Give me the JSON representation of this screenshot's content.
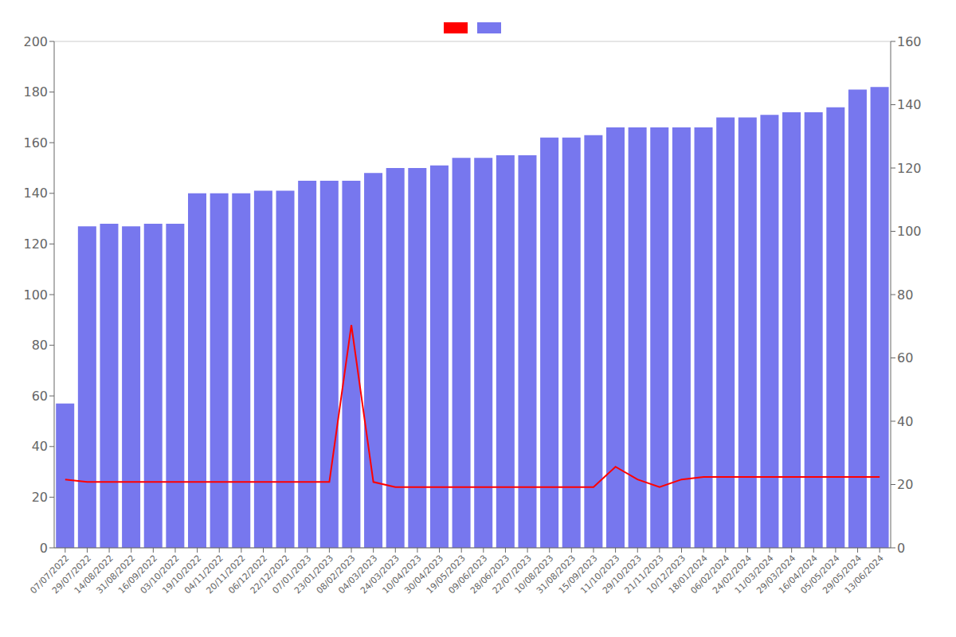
{
  "chart_data": {
    "type": "bar",
    "categories": [
      "07/07/2022",
      "29/07/2022",
      "14/08/2022",
      "31/08/2022",
      "16/09/2022",
      "03/10/2022",
      "19/10/2022",
      "04/11/2022",
      "20/11/2022",
      "06/12/2022",
      "22/12/2022",
      "07/01/2023",
      "23/01/2023",
      "08/02/2023",
      "04/03/2023",
      "24/03/2023",
      "10/04/2023",
      "30/04/2023",
      "19/05/2023",
      "09/06/2023",
      "28/06/2023",
      "22/07/2023",
      "10/08/2023",
      "31/08/2023",
      "15/09/2023",
      "11/10/2023",
      "29/10/2023",
      "21/11/2023",
      "10/12/2023",
      "18/01/2024",
      "06/02/2024",
      "24/02/2024",
      "11/03/2024",
      "29/03/2024",
      "16/04/2024",
      "05/05/2024",
      "29/05/2024",
      "13/06/2024"
    ],
    "series": [
      {
        "type": "bar",
        "color": "#7777ee",
        "values": [
          57,
          127,
          128,
          127,
          128,
          128,
          140,
          140,
          140,
          141,
          141,
          145,
          145,
          145,
          148,
          150,
          150,
          151,
          154,
          154,
          155,
          155,
          162,
          162,
          163,
          166,
          166,
          166,
          166,
          166,
          170,
          170,
          171,
          172,
          172,
          174,
          181,
          182
        ]
      },
      {
        "type": "line",
        "color": "#ff0000",
        "values": [
          27,
          26,
          26,
          26,
          26,
          26,
          26,
          26,
          26,
          26,
          26,
          26,
          26,
          88,
          26,
          24,
          24,
          24,
          24,
          24,
          24,
          24,
          24,
          24,
          24,
          32,
          27,
          24,
          27,
          28,
          28,
          28,
          28,
          28,
          28,
          28,
          28,
          28
        ]
      }
    ],
    "ylim": [
      0,
      200
    ],
    "yticks": [
      0,
      20,
      40,
      60,
      80,
      100,
      120,
      140,
      160,
      180,
      200
    ],
    "y2lim": [
      0,
      160
    ],
    "y2ticks": [
      0,
      20,
      40,
      60,
      80,
      100,
      120,
      140,
      160
    ],
    "grid": true,
    "legend": "top"
  }
}
